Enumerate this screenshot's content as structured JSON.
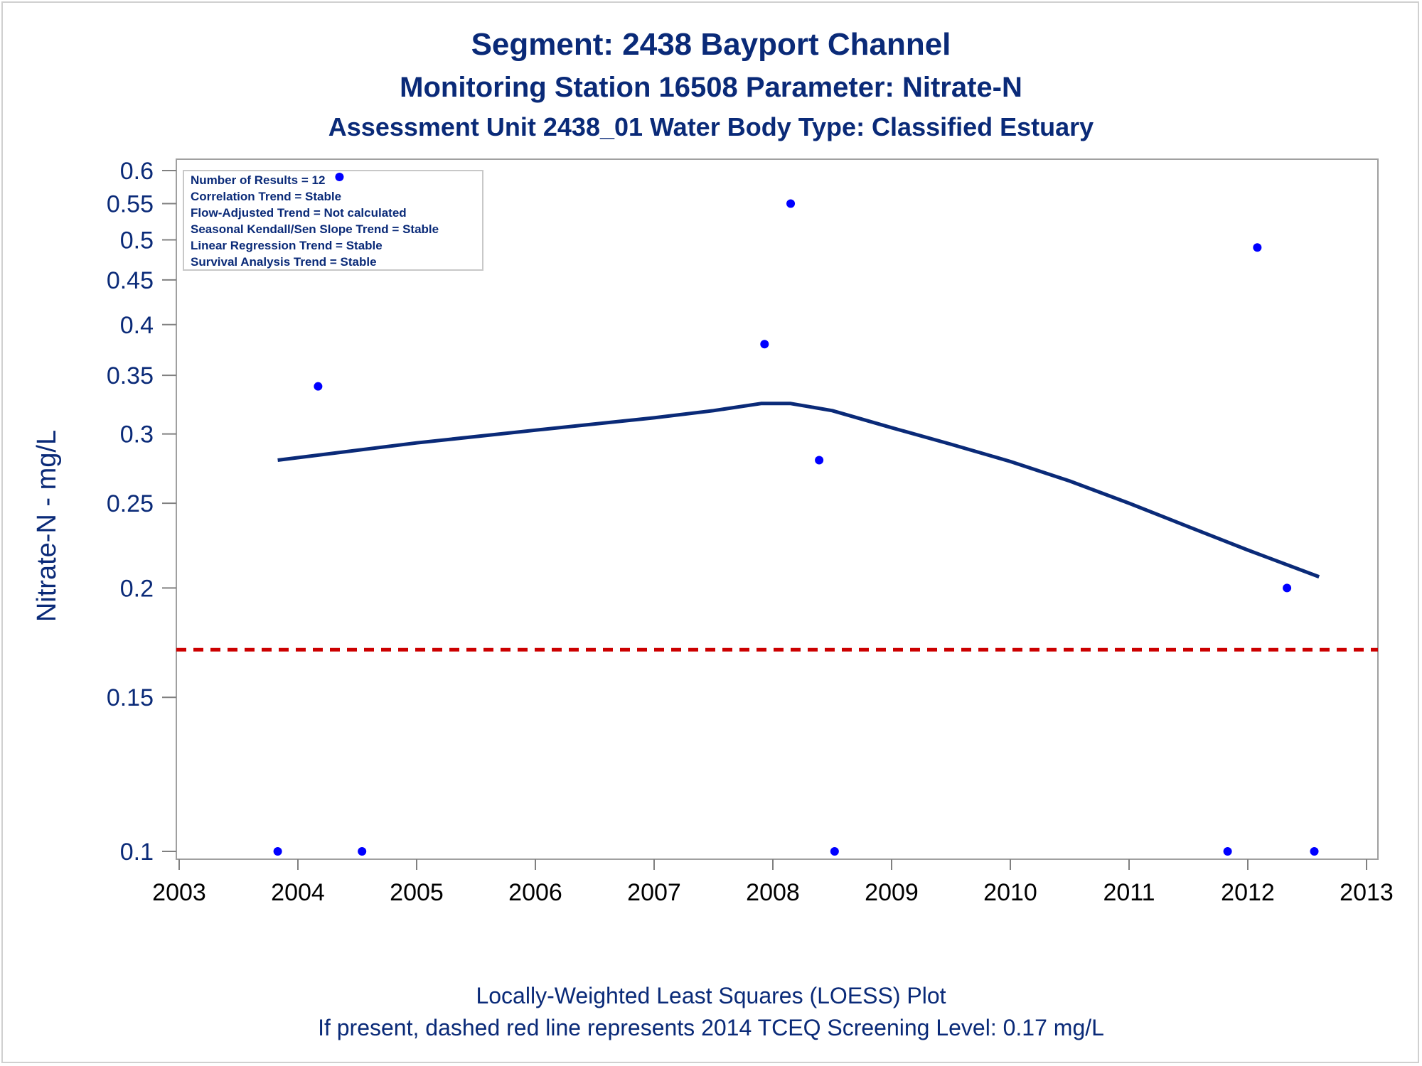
{
  "chart_data": {
    "type": "scatter",
    "title": "Segment: 2438  Bayport Channel",
    "subtitle_1": "Monitoring Station 16508 Parameter: Nitrate-N",
    "subtitle_2": "Assessment Unit 2438_01   Water Body Type: Classified Estuary",
    "ylabel": "Nitrate-N - mg/L",
    "xlabel": "",
    "x_scale": "linear (year)",
    "y_scale": "log",
    "xlim": [
      2003,
      2013
    ],
    "ylim": [
      0.1,
      0.6
    ],
    "x_ticks": [
      "2003",
      "2004",
      "2005",
      "2006",
      "2007",
      "2008",
      "2009",
      "2010",
      "2011",
      "2012",
      "2013"
    ],
    "y_ticks": [
      "0.1",
      "0.15",
      "0.2",
      "0.25",
      "0.3",
      "0.35",
      "0.4",
      "0.45",
      "0.5",
      "0.55",
      "0.6"
    ],
    "grid": false,
    "legend_position": "top-left",
    "info_box": [
      "Number of Results = 12",
      "Correlation Trend = Stable",
      "Flow-Adjusted Trend = Not calculated",
      "Seasonal Kendall/Sen Slope Trend = Stable",
      "Linear Regression Trend = Stable",
      "Survival Analysis Trend = Stable"
    ],
    "points": [
      {
        "x": 2003.83,
        "y": 0.1
      },
      {
        "x": 2004.17,
        "y": 0.34
      },
      {
        "x": 2004.35,
        "y": 0.59
      },
      {
        "x": 2004.54,
        "y": 0.1
      },
      {
        "x": 2007.93,
        "y": 0.38
      },
      {
        "x": 2008.15,
        "y": 0.55
      },
      {
        "x": 2008.39,
        "y": 0.28
      },
      {
        "x": 2008.52,
        "y": 0.1
      },
      {
        "x": 2011.83,
        "y": 0.1
      },
      {
        "x": 2012.08,
        "y": 0.49
      },
      {
        "x": 2012.33,
        "y": 0.2
      },
      {
        "x": 2012.56,
        "y": 0.1
      }
    ],
    "loess_curve": [
      {
        "x": 2003.83,
        "y": 0.28
      },
      {
        "x": 2005.0,
        "y": 0.293
      },
      {
        "x": 2006.0,
        "y": 0.303
      },
      {
        "x": 2007.0,
        "y": 0.313
      },
      {
        "x": 2007.5,
        "y": 0.319
      },
      {
        "x": 2007.9,
        "y": 0.325
      },
      {
        "x": 2008.15,
        "y": 0.325
      },
      {
        "x": 2008.5,
        "y": 0.319
      },
      {
        "x": 2009.0,
        "y": 0.305
      },
      {
        "x": 2009.5,
        "y": 0.292
      },
      {
        "x": 2010.0,
        "y": 0.279
      },
      {
        "x": 2010.5,
        "y": 0.265
      },
      {
        "x": 2011.0,
        "y": 0.25
      },
      {
        "x": 2011.5,
        "y": 0.235
      },
      {
        "x": 2012.0,
        "y": 0.221
      },
      {
        "x": 2012.6,
        "y": 0.206
      }
    ],
    "screening_level": 0.17,
    "colors": {
      "points": "#0000ff",
      "loess": "#0a2a78",
      "screening_line": "#cc0000",
      "text": "#0a2a78"
    }
  },
  "footer": {
    "line1": "Locally-Weighted Least Squares (LOESS) Plot",
    "line2": "If present, dashed red line represents 2014 TCEQ Screening Level: 0.17 mg/L"
  }
}
